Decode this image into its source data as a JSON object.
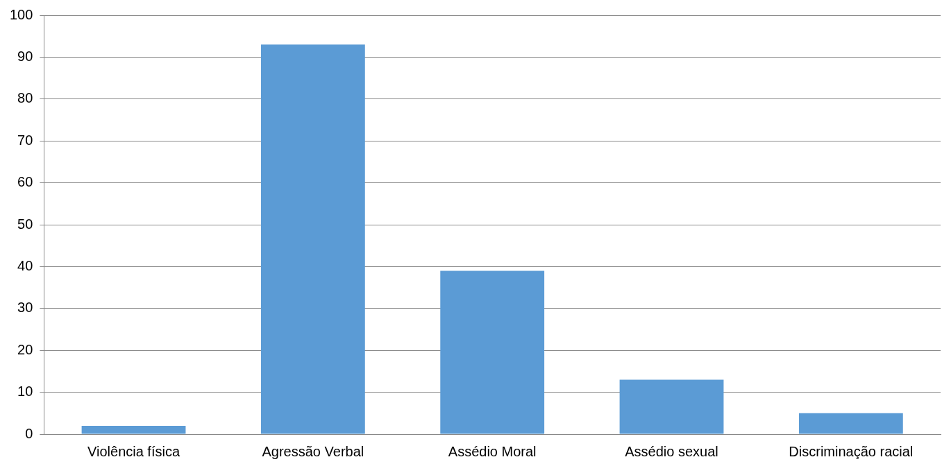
{
  "chart_data": {
    "type": "bar",
    "categories": [
      "Violência física",
      "Agressão Verbal",
      "Assédio Moral",
      "Assédio sexual",
      "Discriminação racial"
    ],
    "values": [
      2,
      93,
      39,
      13,
      5
    ],
    "color": "#5b9bd5",
    "ylim": [
      0,
      100
    ],
    "yticks": [
      0,
      10,
      20,
      30,
      40,
      50,
      60,
      70,
      80,
      90,
      100
    ],
    "grid": "y",
    "legend": false
  }
}
